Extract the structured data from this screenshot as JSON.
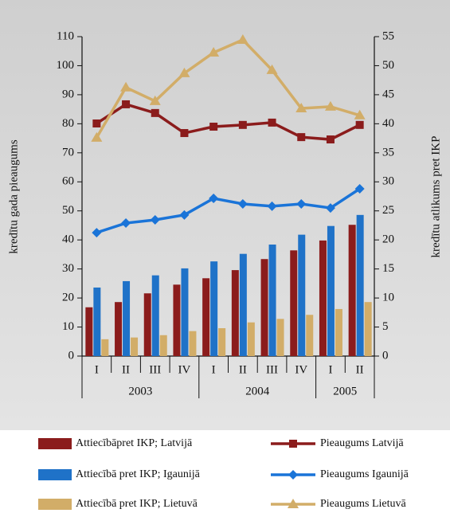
{
  "chart_data": {
    "type": "bar",
    "y_label": "kredītu gada pieaugums",
    "y2_label": "kredītu atlikums pret IKP",
    "category_groups": [
      {
        "label": "2003",
        "categories": [
          "I",
          "II",
          "III",
          "IV"
        ]
      },
      {
        "label": "2004",
        "categories": [
          "I",
          "II",
          "III",
          "IV"
        ]
      },
      {
        "label": "2005",
        "categories": [
          "I",
          "II"
        ]
      }
    ],
    "ylim": [
      0,
      110
    ],
    "yticks": [
      0,
      10,
      20,
      30,
      40,
      50,
      60,
      70,
      80,
      90,
      100,
      110
    ],
    "y2lim": [
      0,
      55
    ],
    "y2ticks": [
      0,
      5,
      10,
      15,
      20,
      25,
      30,
      35,
      40,
      45,
      50,
      55
    ],
    "series": [
      {
        "name": "Attiecībāpret IKP; Latvijā",
        "type": "bar",
        "axis": "y2",
        "color": "#8b1c1c",
        "values": [
          8.4,
          9.3,
          10.8,
          12.3,
          13.4,
          14.8,
          16.7,
          18.2,
          19.9,
          22.6
        ]
      },
      {
        "name": "Attiecībā pret IKP; Igaunijā",
        "type": "bar",
        "axis": "y2",
        "color": "#1f72c8",
        "values": [
          11.8,
          12.9,
          13.9,
          15.1,
          16.3,
          17.6,
          19.2,
          20.9,
          22.4,
          24.3
        ]
      },
      {
        "name": "Attiecībā pret IKP; Lietuvā",
        "type": "bar",
        "axis": "y2",
        "color": "#d2ad68",
        "values": [
          2.9,
          3.2,
          3.6,
          4.3,
          4.8,
          5.8,
          6.4,
          7.1,
          8.1,
          9.3
        ]
      },
      {
        "name": "Pieaugums Latvijā",
        "type": "line",
        "axis": "y",
        "marker": "square",
        "color": "#8b1c1c",
        "values": [
          80.1,
          86.7,
          83.7,
          76.8,
          79.0,
          79.6,
          80.4,
          75.4,
          74.6,
          79.6
        ]
      },
      {
        "name": "Pieaugums Igaunijā",
        "type": "line",
        "axis": "y",
        "marker": "diamond",
        "color": "#1a74d8",
        "values": [
          42.5,
          45.8,
          46.9,
          48.6,
          54.3,
          52.4,
          51.6,
          52.4,
          51.0,
          57.6
        ]
      },
      {
        "name": "Pieaugums Lietuvā",
        "type": "line",
        "axis": "y",
        "marker": "triangle",
        "color": "#d2ad68",
        "values": [
          75.2,
          92.5,
          87.8,
          97.4,
          104.5,
          108.9,
          98.5,
          85.3,
          85.9,
          82.9
        ]
      }
    ]
  }
}
